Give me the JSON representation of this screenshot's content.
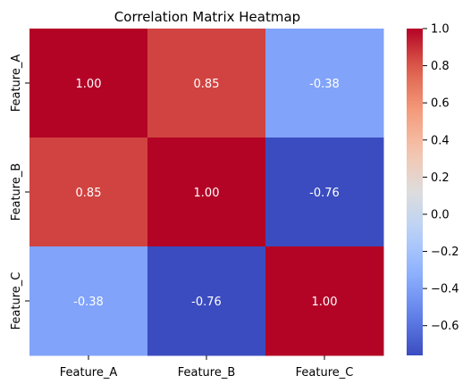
{
  "chart_data": {
    "type": "heatmap",
    "title": "Correlation Matrix Heatmap",
    "x_categories": [
      "Feature_A",
      "Feature_B",
      "Feature_C"
    ],
    "y_categories": [
      "Feature_A",
      "Feature_B",
      "Feature_C"
    ],
    "values": [
      [
        1.0,
        0.85,
        -0.38
      ],
      [
        0.85,
        1.0,
        -0.76
      ],
      [
        -0.38,
        -0.76,
        1.0
      ]
    ],
    "value_labels": [
      [
        "1.00",
        "0.85",
        "-0.38"
      ],
      [
        "0.85",
        "1.00",
        "-0.76"
      ],
      [
        "-0.38",
        "-0.76",
        "1.00"
      ]
    ],
    "colormap": "coolwarm",
    "colorbar": {
      "range": [
        -0.76,
        1.0
      ],
      "ticks": [
        1.0,
        0.8,
        0.6,
        0.4,
        0.2,
        0.0,
        -0.2,
        -0.4,
        -0.6
      ],
      "tick_labels": [
        "1.0",
        "0.8",
        "0.6",
        "0.4",
        "0.2",
        "0.0",
        "−0.2",
        "−0.4",
        "−0.6"
      ]
    },
    "cell_text_color": "#ffffff",
    "xlabel": "",
    "ylabel": ""
  }
}
